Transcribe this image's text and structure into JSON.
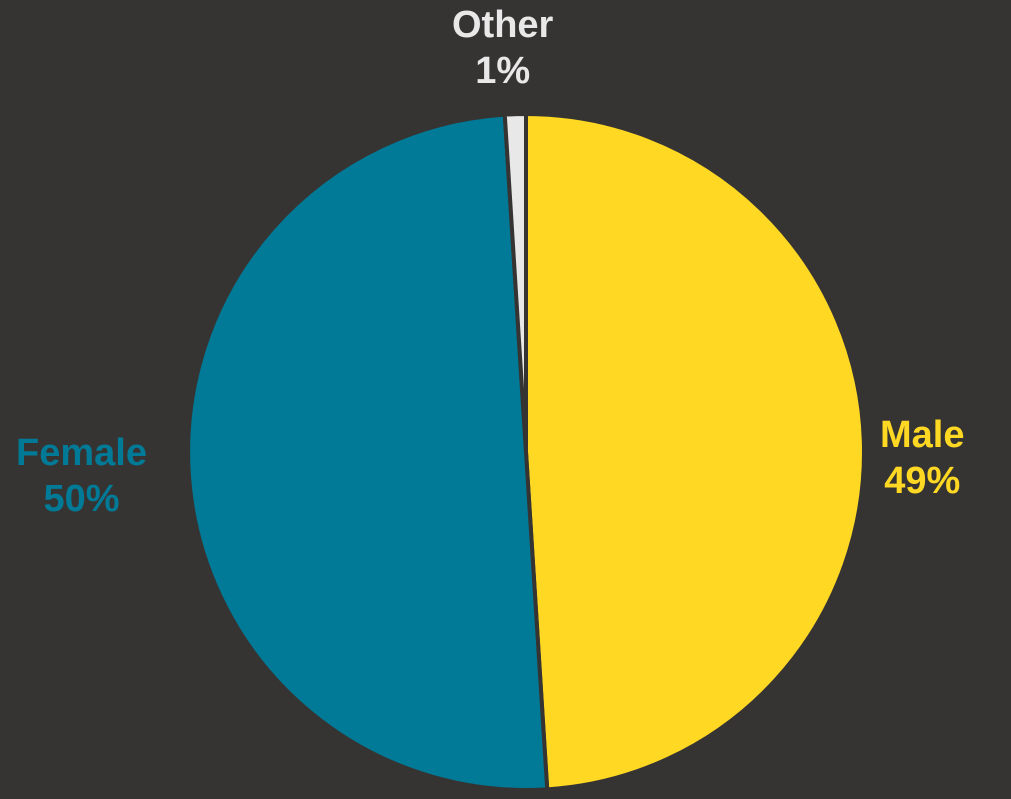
{
  "background_color": "#363433",
  "chart_data": {
    "type": "pie",
    "title": "",
    "slices": [
      {
        "label": "Male",
        "percent_label": "49%",
        "value": 49,
        "color": "#FFD823"
      },
      {
        "label": "Female",
        "percent_label": "50%",
        "value": 50,
        "color": "#007A96"
      },
      {
        "label": "Other",
        "percent_label": "1%",
        "value": 1,
        "color": "#E8E8E8"
      }
    ],
    "start_angle_deg": 0,
    "direction": "clockwise",
    "slice_separator_color": "#363433",
    "legend": "none",
    "data_labels": "outside, category name and percentage, colored by slice"
  }
}
